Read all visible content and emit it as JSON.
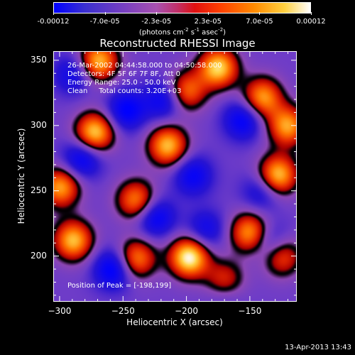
{
  "colorbar": {
    "ticks": [
      "-0.00012",
      "-7.0e-05",
      "-2.3e-05",
      "2.3e-05",
      "7.0e-05",
      "0.00012"
    ],
    "units_main": "(photons cm",
    "units_sup1": "-2",
    "units_mid1": " s",
    "units_sup2": "-1",
    "units_mid2": " asec",
    "units_sup3": "-2",
    "units_end": ")",
    "colors": [
      "#0000ff",
      "#7a40c0",
      "#e01010",
      "#ff8a00",
      "#ffffff"
    ]
  },
  "annotations": {
    "line1": "26-Mar-2002 04:44:58.000 to 04:50:58.000",
    "line2": "Detectors: 4F 5F 6F 7F 8F, Att 0",
    "line3": "Energy Range: 25.0 - 50.0 keV",
    "line4": "Clean     Total counts: 3.20E+03",
    "peak": "Position of Peak = [-198,199]"
  },
  "timestamp": "13-Apr-2013 13:43",
  "chart_data": {
    "type": "heatmap",
    "title": "Reconstructed RHESSI Image",
    "xlabel": "Heliocentric X (arcsec)",
    "ylabel": "Heliocentric Y (arcsec)",
    "xlim": [
      -305,
      -113
    ],
    "ylim": [
      165,
      357
    ],
    "xticks": [
      -300,
      -250,
      -200,
      -150
    ],
    "yticks": [
      200,
      250,
      300,
      350
    ],
    "color_range": [
      -0.00012,
      0.00012
    ],
    "peak": [
      -198,
      199
    ],
    "blobs": [
      {
        "x": -198,
        "y": 199,
        "value": 0.00012
      },
      {
        "x": -270,
        "y": 350,
        "value": 9e-05
      },
      {
        "x": -175,
        "y": 345,
        "value": 0.0001
      },
      {
        "x": -273,
        "y": 295,
        "value": 0.0001
      },
      {
        "x": -215,
        "y": 285,
        "value": 9e-05
      },
      {
        "x": -140,
        "y": 322,
        "value": 8e-05
      },
      {
        "x": -120,
        "y": 300,
        "value": 8e-05
      },
      {
        "x": -128,
        "y": 262,
        "value": 0.0001
      },
      {
        "x": -300,
        "y": 253,
        "value": 8e-05
      },
      {
        "x": -240,
        "y": 243,
        "value": 7e-05
      },
      {
        "x": -150,
        "y": 218,
        "value": 8e-05
      },
      {
        "x": -290,
        "y": 212,
        "value": 9e-05
      },
      {
        "x": -240,
        "y": 198,
        "value": 7e-05
      },
      {
        "x": -170,
        "y": 180,
        "value": 6e-05
      },
      {
        "x": -125,
        "y": 200,
        "value": 6e-05
      },
      {
        "x": -200,
        "y": 327,
        "value": 6e-05
      },
      {
        "x": -258,
        "y": 190,
        "value": -9e-05
      },
      {
        "x": -225,
        "y": 230,
        "value": -8e-05
      },
      {
        "x": -283,
        "y": 275,
        "value": -8e-05
      },
      {
        "x": -218,
        "y": 320,
        "value": -7e-05
      },
      {
        "x": -155,
        "y": 305,
        "value": -8e-05
      },
      {
        "x": -248,
        "y": 312,
        "value": -8e-05
      },
      {
        "x": -195,
        "y": 262,
        "value": -7e-05
      },
      {
        "x": -140,
        "y": 250,
        "value": -6e-05
      },
      {
        "x": -133,
        "y": 210,
        "value": -7e-05
      },
      {
        "x": -170,
        "y": 172,
        "value": -5e-05
      },
      {
        "x": -290,
        "y": 340,
        "value": -6e-05
      },
      {
        "x": -185,
        "y": 220,
        "value": -6e-05
      }
    ]
  }
}
